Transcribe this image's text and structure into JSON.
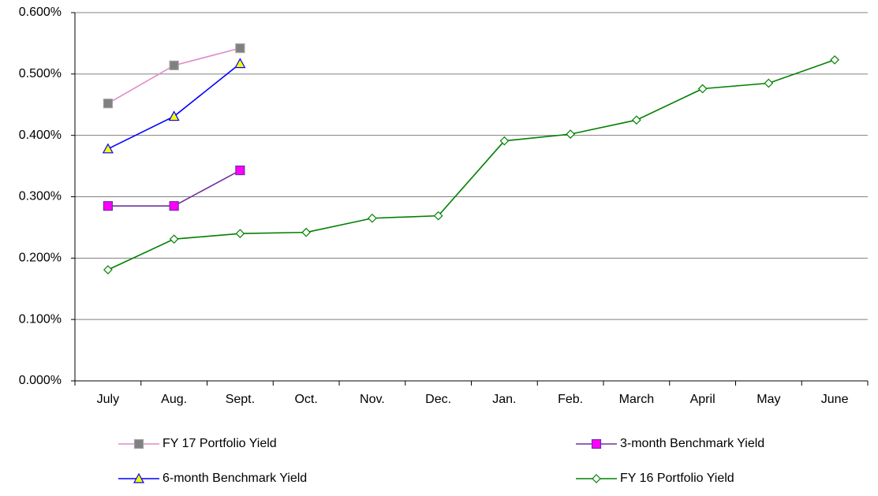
{
  "chart_data": {
    "type": "line",
    "categories": [
      "July",
      "Aug.",
      "Sept.",
      "Oct.",
      "Nov.",
      "Dec.",
      "Jan.",
      "Feb.",
      "March",
      "April",
      "May",
      "June"
    ],
    "series": [
      {
        "name": "FY 17 Portfolio Yield",
        "color": "#e08cc8",
        "marker": "square",
        "marker_fill": "#808080",
        "marker_stroke": "#a0a0a0",
        "values": [
          0.452,
          0.514,
          0.542,
          null,
          null,
          null,
          null,
          null,
          null,
          null,
          null,
          null
        ]
      },
      {
        "name": "3-month Benchmark Yield",
        "color": "#7030a0",
        "marker": "square",
        "marker_fill": "#ff00ff",
        "marker_stroke": "#7030a0",
        "values": [
          0.285,
          0.285,
          0.343,
          null,
          null,
          null,
          null,
          null,
          null,
          null,
          null,
          null
        ]
      },
      {
        "name": "6-month  Benchmark Yield",
        "color": "#0000ff",
        "marker": "triangle",
        "marker_fill": "#ffff00",
        "marker_stroke": "#0000ff",
        "values": [
          0.378,
          0.431,
          0.517,
          null,
          null,
          null,
          null,
          null,
          null,
          null,
          null,
          null
        ]
      },
      {
        "name": "FY 16 Portfolio Yield",
        "color": "#008000",
        "marker": "diamond",
        "marker_fill": "#ffffff",
        "marker_stroke": "#008000",
        "values": [
          0.181,
          0.231,
          0.24,
          0.242,
          0.265,
          0.269,
          0.391,
          0.402,
          0.425,
          0.476,
          0.485,
          0.523
        ]
      }
    ],
    "ylim": [
      0,
      0.6
    ],
    "yticks": [
      {
        "value": 0,
        "label": "0.000%"
      },
      {
        "value": 0.1,
        "label": "0.100%"
      },
      {
        "value": 0.2,
        "label": "0.200%"
      },
      {
        "value": 0.3,
        "label": "0.300%"
      },
      {
        "value": 0.4,
        "label": "0.400%"
      },
      {
        "value": 0.5,
        "label": "0.500%"
      },
      {
        "value": 0.6,
        "label": "0.600%"
      }
    ],
    "grid": true
  }
}
